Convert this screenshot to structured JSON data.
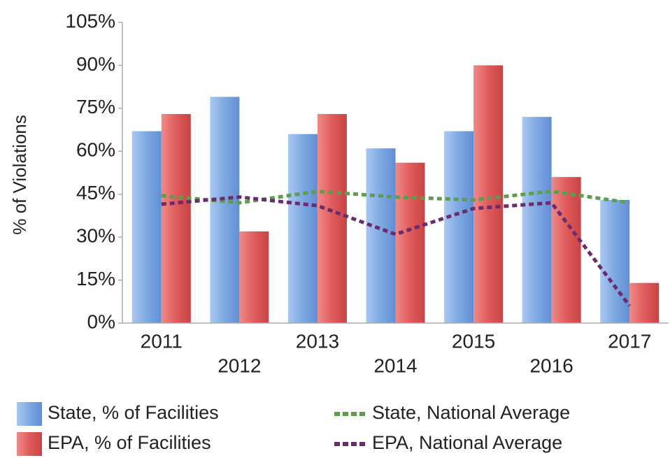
{
  "chart_data": {
    "type": "bar",
    "y_label": "% of Violations",
    "categories": [
      "2011",
      "2012",
      "2013",
      "2014",
      "2015",
      "2016",
      "2017"
    ],
    "series": [
      {
        "name": "State, % of Facilities",
        "type": "bar",
        "color": "#7ea8e2",
        "values": [
          67,
          79,
          66,
          61,
          67,
          72,
          43
        ]
      },
      {
        "name": "EPA, % of Facilities",
        "type": "bar",
        "color": "#e05b5b",
        "values": [
          73,
          32,
          73,
          56,
          90,
          51,
          14
        ]
      },
      {
        "name": "State, National Average",
        "type": "line",
        "color": "#5c9e4c",
        "values": [
          44.5,
          42,
          46,
          44,
          43,
          46,
          42
        ]
      },
      {
        "name": "EPA, National Average",
        "type": "line",
        "color": "#6b2c6e",
        "values": [
          41.5,
          44,
          41,
          31,
          40,
          42,
          6
        ]
      }
    ],
    "ylim": [
      0,
      105
    ],
    "yticks": [
      {
        "value": 0,
        "label": "0%"
      },
      {
        "value": 15,
        "label": "15%"
      },
      {
        "value": 30,
        "label": "30%"
      },
      {
        "value": 45,
        "label": "45%"
      },
      {
        "value": 60,
        "label": "60%"
      },
      {
        "value": 75,
        "label": "75%"
      },
      {
        "value": 90,
        "label": "90%"
      },
      {
        "value": 105,
        "label": "105%"
      }
    ],
    "grid": false
  }
}
